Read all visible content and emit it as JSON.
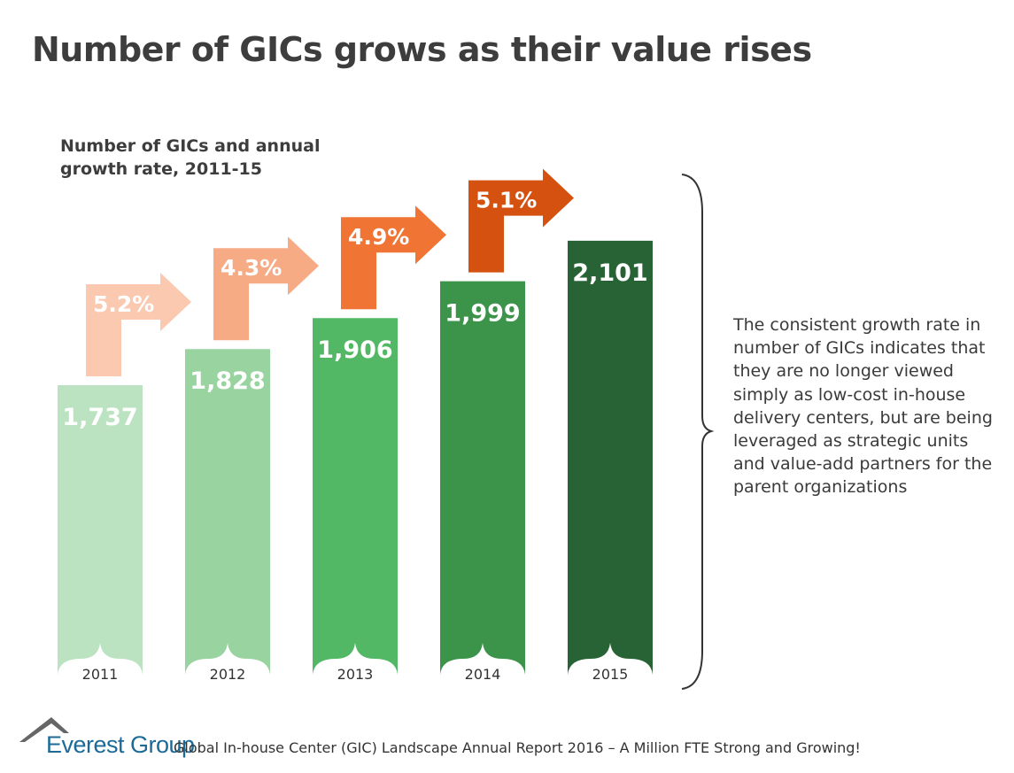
{
  "title": "Number of GICs grows as their value rises",
  "chart_data": {
    "type": "bar",
    "title": "Number of GICs and annual growth rate, 2011-15",
    "categories": [
      "2011",
      "2012",
      "2013",
      "2014",
      "2015"
    ],
    "values": [
      1737,
      1828,
      1906,
      1999,
      2101
    ],
    "value_labels": [
      "1,737",
      "1,828",
      "1,906",
      "1,999",
      "2,101"
    ],
    "growth_rates": [
      "5.2%",
      "4.3%",
      "4.9%",
      "5.1%"
    ],
    "bar_colors": [
      "#bbe3c1",
      "#98d3a0",
      "#53b865",
      "#3b944a",
      "#276334"
    ],
    "arrow_colors": [
      "#fac9b0",
      "#f6ab85",
      "#f07535",
      "#d4510f"
    ],
    "grid": false,
    "legend": "none"
  },
  "note": "The consistent growth rate in number of GICs indicates that they are no longer viewed simply as low-cost in-house delivery centers, but are being leveraged as strategic units and value-add partners for the parent organizations",
  "footer": {
    "brand": "Everest Group",
    "source": "Global In-house Center (GIC) Landscape Annual Report 2016 – A Million FTE Strong and Growing!"
  }
}
